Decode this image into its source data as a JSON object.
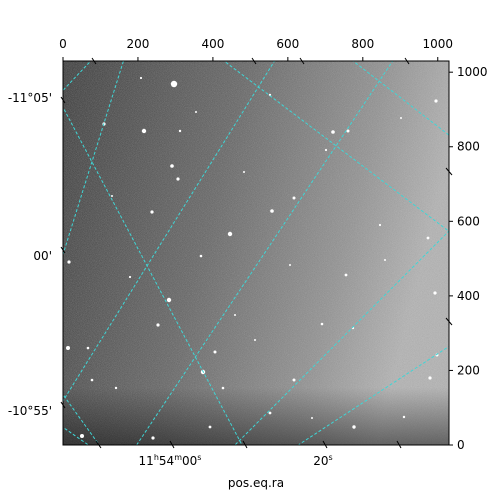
{
  "figure": {
    "xlabel": "pos.eq.ra",
    "pixel_x_ticks": [
      "0",
      "200",
      "400",
      "600",
      "800",
      "1000"
    ],
    "pixel_y_ticks": [
      "0",
      "200",
      "400",
      "600",
      "800",
      "1000"
    ],
    "dec_ticks": [
      "-11°05'",
      "00'",
      "-10°55'"
    ],
    "ra_ticks": [
      {
        "h": "11",
        "m": "54",
        "s": "00",
        "label": "11h54m00s"
      },
      {
        "s": "20",
        "label": "20s"
      }
    ],
    "grid_color": "#3fd6d6",
    "image_gray_dark": "#2a2a2a",
    "image_gray_light": "#b4b4b4"
  }
}
